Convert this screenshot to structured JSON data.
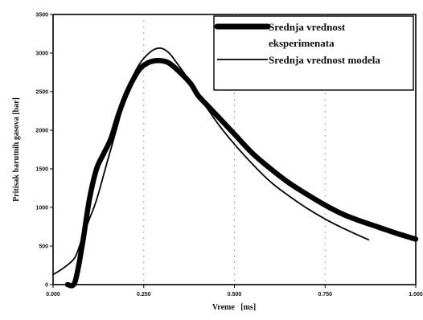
{
  "chart_data": {
    "type": "line",
    "title": "",
    "xlabel": "Vreme   [ms]",
    "ylabel": "Pritisak barutnih gasova [bar]",
    "xlim": [
      0,
      1.0
    ],
    "ylim": [
      0,
      3500
    ],
    "x_ticks": [
      0,
      0.25,
      0.5,
      0.75,
      1.0
    ],
    "x_tick_labels": [
      "0.000",
      "0.250",
      "0.500",
      "0.750",
      "1.000"
    ],
    "y_ticks": [
      0,
      500,
      1000,
      1500,
      2000,
      2500,
      3000,
      3500
    ],
    "y_tick_labels": [
      "0",
      "500",
      "1000",
      "1500",
      "2000",
      "2500",
      "3000",
      "3500"
    ],
    "grid": "vertical dotted lines at x tick marks",
    "legend_position": "top-right",
    "series": [
      {
        "name": "Srednja vrednost eksperimenata",
        "legend_lines": [
          "Srednja vrednost",
          "eksperimenata"
        ],
        "color": "#000000",
        "style": "thick",
        "x": [
          0.04,
          0.06,
          0.08,
          0.1,
          0.12,
          0.14,
          0.16,
          0.18,
          0.2,
          0.22,
          0.24,
          0.26,
          0.28,
          0.3,
          0.32,
          0.35,
          0.38,
          0.4,
          0.43,
          0.46,
          0.5,
          0.55,
          0.6,
          0.65,
          0.7,
          0.75,
          0.8,
          0.85,
          0.9,
          0.95,
          1.0
        ],
        "y": [
          0,
          30,
          500,
          1100,
          1500,
          1700,
          1900,
          2200,
          2450,
          2650,
          2800,
          2870,
          2900,
          2900,
          2870,
          2750,
          2600,
          2450,
          2300,
          2150,
          1950,
          1700,
          1500,
          1320,
          1170,
          1030,
          910,
          820,
          740,
          660,
          590
        ]
      },
      {
        "name": "Srednja vrednost modela",
        "legend_lines": [
          "Srednja vrednost modela"
        ],
        "color": "#000000",
        "style": "thin",
        "x": [
          0.0,
          0.03,
          0.06,
          0.08,
          0.1,
          0.12,
          0.15,
          0.18,
          0.2,
          0.22,
          0.24,
          0.26,
          0.28,
          0.3,
          0.32,
          0.34,
          0.37,
          0.4,
          0.43,
          0.46,
          0.5,
          0.55,
          0.6,
          0.65,
          0.7,
          0.75,
          0.8,
          0.87
        ],
        "y": [
          130,
          220,
          350,
          600,
          850,
          1100,
          1600,
          2100,
          2450,
          2700,
          2870,
          2980,
          3050,
          3060,
          3000,
          2880,
          2680,
          2450,
          2250,
          2050,
          1820,
          1560,
          1330,
          1150,
          990,
          850,
          730,
          580
        ]
      }
    ]
  }
}
